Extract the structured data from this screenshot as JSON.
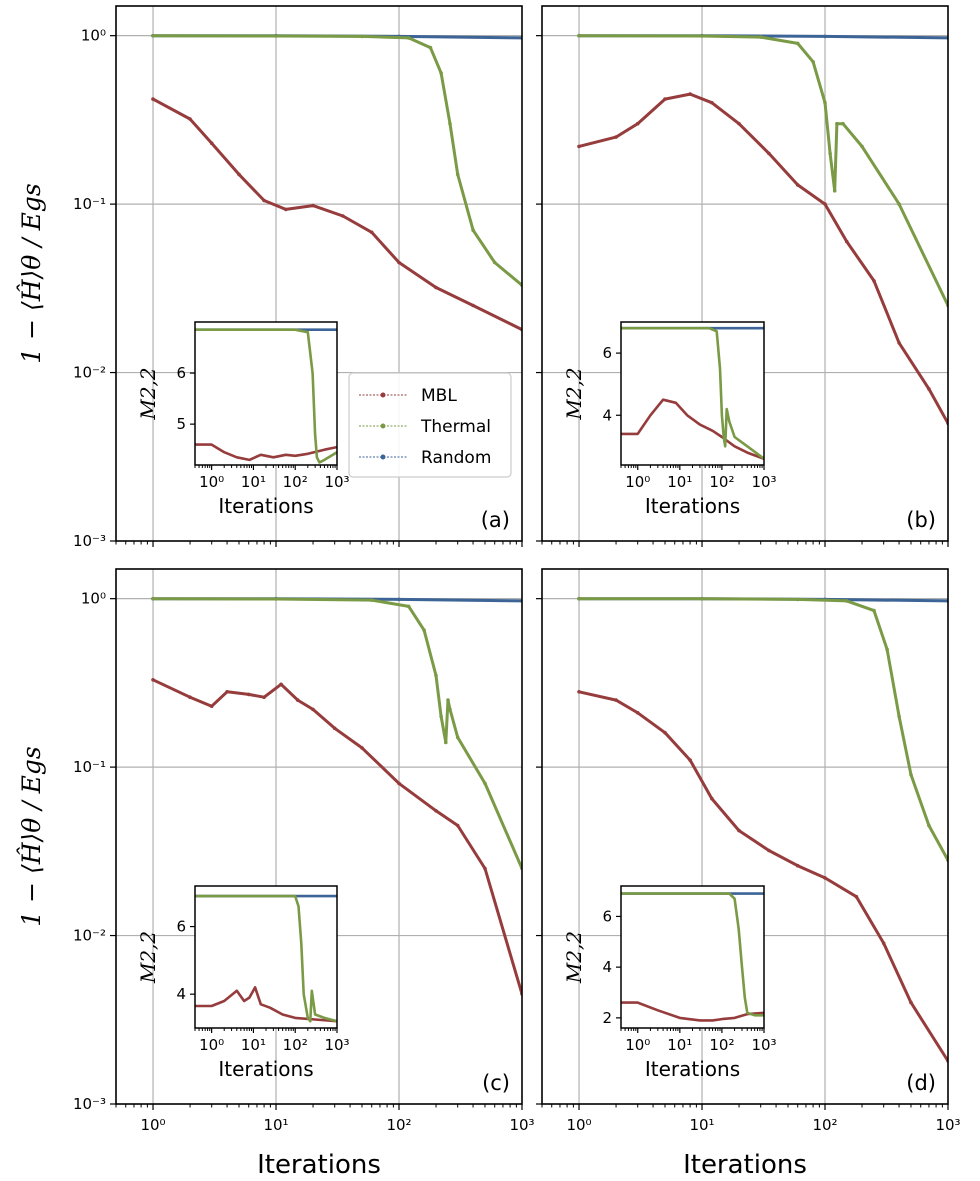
{
  "chart_data": {
    "type": "line",
    "shared": {
      "xlabel": "Iterations",
      "ylabel": "1 − ⟨Ĥ⟩θ / Egs",
      "xscale": "log",
      "yscale": "log",
      "xlim": [
        0.5,
        1000
      ],
      "ylim": [
        0.001,
        1.5
      ],
      "x_ticks": [
        "10⁰",
        "10¹",
        "10²",
        "10³"
      ],
      "y_ticks": [
        "10⁰",
        "10⁻¹",
        "10⁻²",
        "10⁻³"
      ],
      "grid": true,
      "legend": {
        "placement": "inside panel (a), center-right",
        "entries": [
          {
            "name": "MBL",
            "color": "#963c3c",
            "marker": "triangle-down"
          },
          {
            "name": "Thermal",
            "color": "#7a9a46",
            "marker": "diamond"
          },
          {
            "name": "Random",
            "color": "#3d6496",
            "marker": "circle"
          }
        ]
      },
      "inset": {
        "xlabel": "Iterations",
        "ylabel": "M2,2",
        "xscale": "log",
        "xlim": [
          0.4,
          1000
        ],
        "x_ticks": [
          "10⁰",
          "10¹",
          "10²",
          "10³"
        ]
      }
    },
    "panels": [
      {
        "label": "(a)",
        "series": [
          {
            "name": "MBL",
            "x": [
              1,
              2,
              3,
              5,
              8,
              12,
              20,
              35,
              60,
              100,
              200,
              400,
              1000
            ],
            "y": [
              0.42,
              0.32,
              0.23,
              0.15,
              0.105,
              0.093,
              0.098,
              0.085,
              0.068,
              0.045,
              0.032,
              0.025,
              0.018
            ]
          },
          {
            "name": "Thermal",
            "x": [
              1,
              10,
              50,
              120,
              180,
              220,
              260,
              300,
              400,
              600,
              1000
            ],
            "y": [
              1.0,
              0.995,
              0.99,
              0.97,
              0.85,
              0.6,
              0.3,
              0.15,
              0.07,
              0.045,
              0.033
            ]
          },
          {
            "name": "Random",
            "x": [
              1,
              10,
              100,
              1000
            ],
            "y": [
              1.0,
              1.0,
              0.99,
              0.97
            ]
          }
        ],
        "inset": {
          "ylim": [
            4.2,
            7.0
          ],
          "y_ticks": [
            "5",
            "6"
          ],
          "series": [
            {
              "name": "MBL",
              "x": [
                0.4,
                1,
                2,
                4,
                8,
                15,
                30,
                60,
                100,
                200,
                500,
                1000
              ],
              "y": [
                4.6,
                4.6,
                4.45,
                4.35,
                4.3,
                4.4,
                4.35,
                4.4,
                4.38,
                4.42,
                4.5,
                4.55
              ]
            },
            {
              "name": "Thermal",
              "x": [
                0.4,
                100,
                200,
                260,
                300,
                330,
                380,
                500,
                1000
              ],
              "y": [
                6.85,
                6.85,
                6.8,
                6.0,
                4.8,
                4.35,
                4.25,
                4.3,
                4.45
              ]
            },
            {
              "name": "Random",
              "x": [
                0.4,
                1000
              ],
              "y": [
                6.85,
                6.85
              ]
            }
          ]
        }
      },
      {
        "label": "(b)",
        "series": [
          {
            "name": "MBL",
            "x": [
              1,
              2,
              3,
              5,
              8,
              12,
              20,
              35,
              60,
              100,
              150,
              250,
              400,
              700,
              1000
            ],
            "y": [
              0.22,
              0.25,
              0.3,
              0.42,
              0.45,
              0.4,
              0.3,
              0.2,
              0.13,
              0.1,
              0.06,
              0.035,
              0.015,
              0.008,
              0.005
            ]
          },
          {
            "name": "Thermal",
            "x": [
              1,
              10,
              30,
              60,
              80,
              100,
              110,
              120,
              125,
              140,
              200,
              400,
              1000
            ],
            "y": [
              1.0,
              0.995,
              0.98,
              0.9,
              0.7,
              0.4,
              0.2,
              0.12,
              0.3,
              0.3,
              0.22,
              0.1,
              0.025
            ]
          },
          {
            "name": "Random",
            "x": [
              1,
              10,
              100,
              1000
            ],
            "y": [
              1.0,
              1.0,
              0.99,
              0.97
            ]
          }
        ],
        "inset": {
          "ylim": [
            2.4,
            7.0
          ],
          "y_ticks": [
            "4",
            "6"
          ],
          "series": [
            {
              "name": "MBL",
              "x": [
                0.4,
                1,
                2,
                4,
                8,
                15,
                30,
                60,
                100,
                200,
                400,
                1000
              ],
              "y": [
                3.4,
                3.4,
                4.0,
                4.5,
                4.4,
                4.0,
                3.7,
                3.5,
                3.3,
                3.0,
                2.8,
                2.6
              ]
            },
            {
              "name": "Thermal",
              "x": [
                0.4,
                50,
                75,
                90,
                100,
                110,
                120,
                130,
                150,
                200,
                400,
                1000
              ],
              "y": [
                6.8,
                6.8,
                6.7,
                5.5,
                4.0,
                3.3,
                3.0,
                4.2,
                3.8,
                3.3,
                3.0,
                2.6
              ]
            },
            {
              "name": "Random",
              "x": [
                0.4,
                1000
              ],
              "y": [
                6.8,
                6.8
              ]
            }
          ]
        }
      },
      {
        "label": "(c)",
        "series": [
          {
            "name": "MBL",
            "x": [
              1,
              2,
              3,
              4,
              6,
              8,
              11,
              15,
              20,
              30,
              50,
              100,
              200,
              300,
              500,
              1000
            ],
            "y": [
              0.33,
              0.26,
              0.23,
              0.28,
              0.27,
              0.26,
              0.31,
              0.25,
              0.22,
              0.17,
              0.13,
              0.08,
              0.055,
              0.045,
              0.025,
              0.0045
            ]
          },
          {
            "name": "Thermal",
            "x": [
              1,
              10,
              60,
              120,
              160,
              200,
              220,
              240,
              250,
              260,
              300,
              500,
              1000
            ],
            "y": [
              1.0,
              0.995,
              0.98,
              0.9,
              0.65,
              0.35,
              0.2,
              0.14,
              0.25,
              0.22,
              0.15,
              0.08,
              0.025
            ]
          },
          {
            "name": "Random",
            "x": [
              1,
              10,
              100,
              1000
            ],
            "y": [
              1.0,
              1.0,
              0.99,
              0.97
            ]
          }
        ],
        "inset": {
          "ylim": [
            3.0,
            7.2
          ],
          "y_ticks": [
            "4",
            "6"
          ],
          "series": [
            {
              "name": "MBL",
              "x": [
                0.4,
                1,
                2,
                4,
                6,
                8,
                11,
                15,
                25,
                50,
                100,
                300,
                1000
              ],
              "y": [
                3.65,
                3.65,
                3.8,
                4.1,
                3.8,
                3.9,
                4.2,
                3.7,
                3.6,
                3.4,
                3.3,
                3.25,
                3.2
              ]
            },
            {
              "name": "Thermal",
              "x": [
                0.4,
                100,
                120,
                140,
                160,
                200,
                230,
                250,
                300,
                500,
                1000
              ],
              "y": [
                6.9,
                6.9,
                6.6,
                5.5,
                4.0,
                3.3,
                3.2,
                4.1,
                3.4,
                3.3,
                3.2
              ]
            },
            {
              "name": "Random",
              "x": [
                0.4,
                1000
              ],
              "y": [
                6.9,
                6.9
              ]
            }
          ]
        }
      },
      {
        "label": "(d)",
        "series": [
          {
            "name": "MBL",
            "x": [
              1,
              2,
              3,
              5,
              8,
              12,
              20,
              35,
              60,
              100,
              180,
              300,
              500,
              1000
            ],
            "y": [
              0.28,
              0.25,
              0.21,
              0.16,
              0.11,
              0.065,
              0.042,
              0.032,
              0.026,
              0.022,
              0.017,
              0.009,
              0.004,
              0.0018
            ]
          },
          {
            "name": "Thermal",
            "x": [
              1,
              10,
              60,
              150,
              250,
              320,
              400,
              500,
              700,
              1000
            ],
            "y": [
              1.0,
              0.998,
              0.99,
              0.97,
              0.85,
              0.5,
              0.2,
              0.09,
              0.045,
              0.028
            ]
          },
          {
            "name": "Random",
            "x": [
              1,
              10,
              100,
              1000
            ],
            "y": [
              1.0,
              1.0,
              0.99,
              0.97
            ]
          }
        ],
        "inset": {
          "ylim": [
            1.6,
            7.2
          ],
          "y_ticks": [
            "2",
            "4",
            "6"
          ],
          "series": [
            {
              "name": "MBL",
              "x": [
                0.4,
                1,
                3,
                10,
                30,
                60,
                100,
                200,
                400,
                1000
              ],
              "y": [
                2.6,
                2.6,
                2.3,
                2.0,
                1.9,
                1.9,
                1.95,
                2.0,
                2.15,
                2.2
              ]
            },
            {
              "name": "Thermal",
              "x": [
                0.4,
                150,
                200,
                250,
                300,
                350,
                400,
                600,
                1000
              ],
              "y": [
                6.9,
                6.9,
                6.7,
                5.5,
                4.0,
                2.8,
                2.2,
                2.1,
                2.1
              ]
            },
            {
              "name": "Random",
              "x": [
                0.4,
                1000
              ],
              "y": [
                6.9,
                6.9
              ]
            }
          ]
        }
      }
    ]
  }
}
